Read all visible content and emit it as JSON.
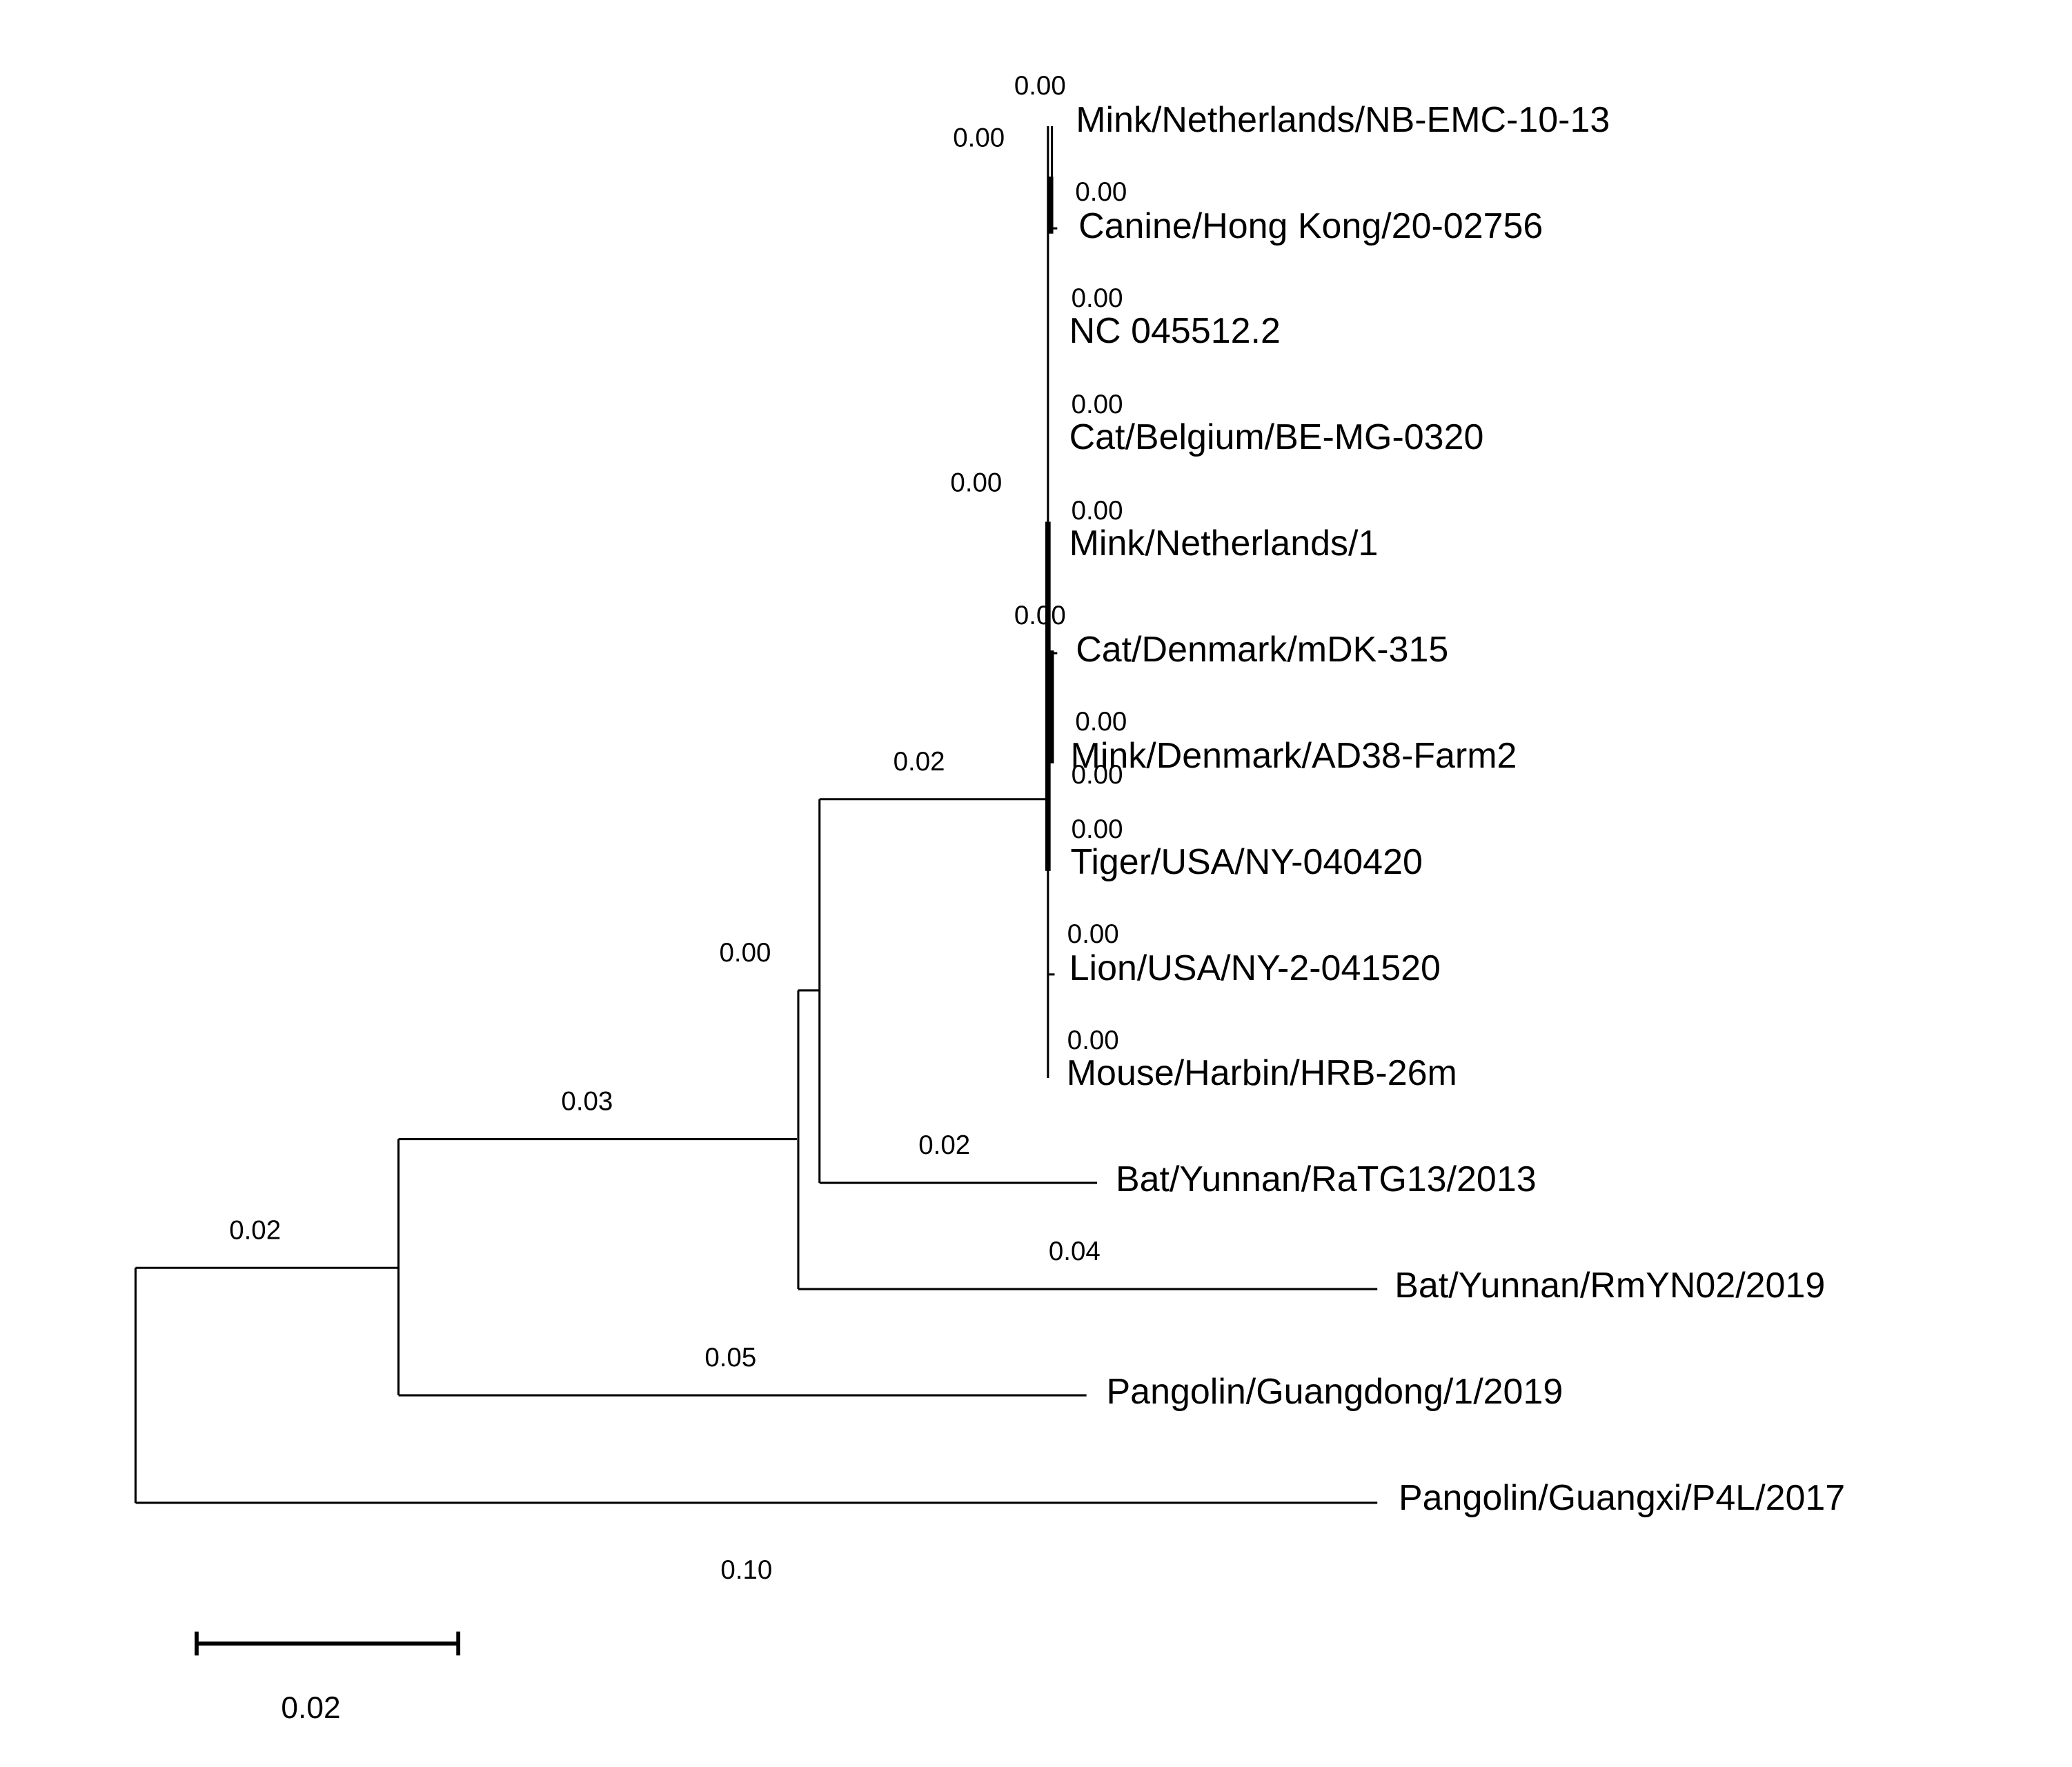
{
  "taxa": [
    "Mink/Netherlands/NB-EMC-10-13",
    "Canine/Hong Kong/20-02756",
    "NC 045512.2",
    "Cat/Belgium/BE-MG-0320",
    "Mink/Netherlands/1",
    "Cat/Denmark/mDK-315",
    "Mink/Denmark/AD38-Farm2",
    "Tiger/USA/NY-040420",
    "Lion/USA/NY-2-041520",
    "Mouse/Harbin/HRB-26m",
    "Bat/Yunnan/RaTG13/2013",
    "Bat/Yunnan/RmYN02/2019",
    "Pangolin/Guangdong/1/2019",
    "Pangolin/Guangxi/P4L/2017"
  ],
  "branch_labels": [
    "0.00",
    "0.00",
    "0.00",
    "0.00",
    "0.00",
    "0.00",
    "0.00",
    "0.00",
    "0.00",
    "0.00",
    "0.00",
    "0.00",
    "0.00",
    "0.02",
    "0.00",
    "0.02",
    "0.03",
    "0.04",
    "0.02",
    "0.05",
    "0.10"
  ],
  "scale_bar_label": "0.02"
}
